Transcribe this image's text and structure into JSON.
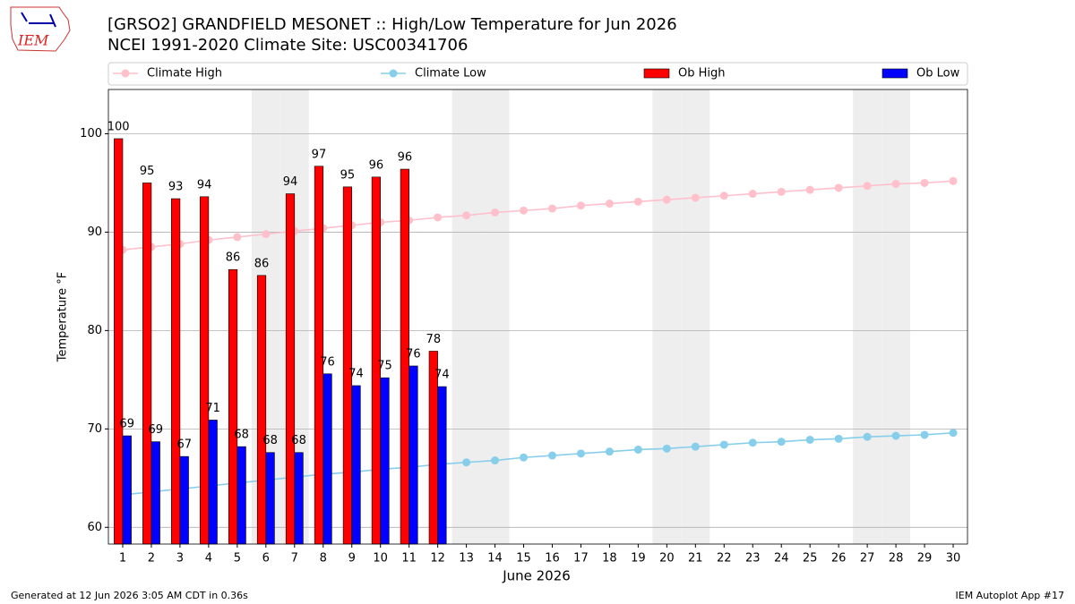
{
  "logo": "IEM",
  "footer": {
    "left": "Generated at 12 Jun 2026 3:05 AM CDT in 0.36s",
    "right": "IEM Autoplot App #17"
  },
  "chart_data": {
    "type": "bar",
    "title": "[GRSO2] GRANDFIELD MESONET :: High/Low Temperature for Jun 2026",
    "subtitle": "NCEI 1991-2020 Climate Site: USC00341706",
    "x_label": "June 2026",
    "y_label": "Temperature °F",
    "x": [
      1,
      2,
      3,
      4,
      5,
      6,
      7,
      8,
      9,
      10,
      11,
      12,
      13,
      14,
      15,
      16,
      17,
      18,
      19,
      20,
      21,
      22,
      23,
      24,
      25,
      26,
      27,
      28,
      29,
      30
    ],
    "xlim": [
      0.5,
      30.5
    ],
    "xticks": [
      1,
      2,
      3,
      4,
      5,
      6,
      7,
      8,
      9,
      10,
      11,
      12,
      13,
      14,
      15,
      16,
      17,
      18,
      19,
      20,
      21,
      22,
      23,
      24,
      25,
      26,
      27,
      28,
      29,
      30
    ],
    "ylim": [
      58.3,
      104.5
    ],
    "yticks": [
      60,
      70,
      80,
      90,
      100
    ],
    "grid": true,
    "shaded_days": [
      6,
      7,
      13,
      14,
      20,
      21,
      27,
      28
    ],
    "series": [
      {
        "name": "Climate High",
        "type": "line",
        "color": "#ffc0cb",
        "values": [
          88.2,
          88.5,
          88.8,
          89.2,
          89.5,
          89.8,
          90.1,
          90.4,
          90.7,
          91.0,
          91.2,
          91.5,
          91.7,
          92.0,
          92.2,
          92.4,
          92.7,
          92.9,
          93.1,
          93.3,
          93.5,
          93.7,
          93.9,
          94.1,
          94.3,
          94.5,
          94.7,
          94.9,
          95.0,
          95.2
        ]
      },
      {
        "name": "Climate Low",
        "type": "line",
        "color": "#87ceeb",
        "values": [
          63.3,
          63.6,
          63.9,
          64.2,
          64.5,
          64.8,
          65.1,
          65.4,
          65.6,
          65.9,
          66.1,
          66.4,
          66.6,
          66.8,
          67.1,
          67.3,
          67.5,
          67.7,
          67.9,
          68.0,
          68.2,
          68.4,
          68.6,
          68.7,
          68.9,
          69.0,
          69.2,
          69.3,
          69.4,
          69.6
        ]
      },
      {
        "name": "Ob High",
        "type": "bar",
        "color": "#ff0000",
        "values": [
          99.5,
          95.0,
          93.4,
          93.6,
          86.2,
          85.6,
          93.9,
          96.7,
          94.6,
          95.6,
          96.4,
          77.9,
          null,
          null,
          null,
          null,
          null,
          null,
          null,
          null,
          null,
          null,
          null,
          null,
          null,
          null,
          null,
          null,
          null,
          null
        ],
        "value_labels": [
          "100",
          "95",
          "93",
          "94",
          "86",
          "86",
          "94",
          "97",
          "95",
          "96",
          "96",
          "78",
          null,
          null,
          null,
          null,
          null,
          null,
          null,
          null,
          null,
          null,
          null,
          null,
          null,
          null,
          null,
          null,
          null,
          null
        ]
      },
      {
        "name": "Ob Low",
        "type": "bar",
        "color": "#0000ff",
        "values": [
          69.3,
          68.7,
          67.2,
          70.9,
          68.2,
          67.6,
          67.6,
          75.6,
          74.4,
          75.2,
          76.4,
          74.3,
          null,
          null,
          null,
          null,
          null,
          null,
          null,
          null,
          null,
          null,
          null,
          null,
          null,
          null,
          null,
          null,
          null,
          null
        ],
        "value_labels": [
          "69",
          "69",
          "67",
          "71",
          "68",
          "68",
          "68",
          "76",
          "74",
          "75",
          "76",
          "74",
          null,
          null,
          null,
          null,
          null,
          null,
          null,
          null,
          null,
          null,
          null,
          null,
          null,
          null,
          null,
          null,
          null,
          null
        ]
      }
    ]
  }
}
